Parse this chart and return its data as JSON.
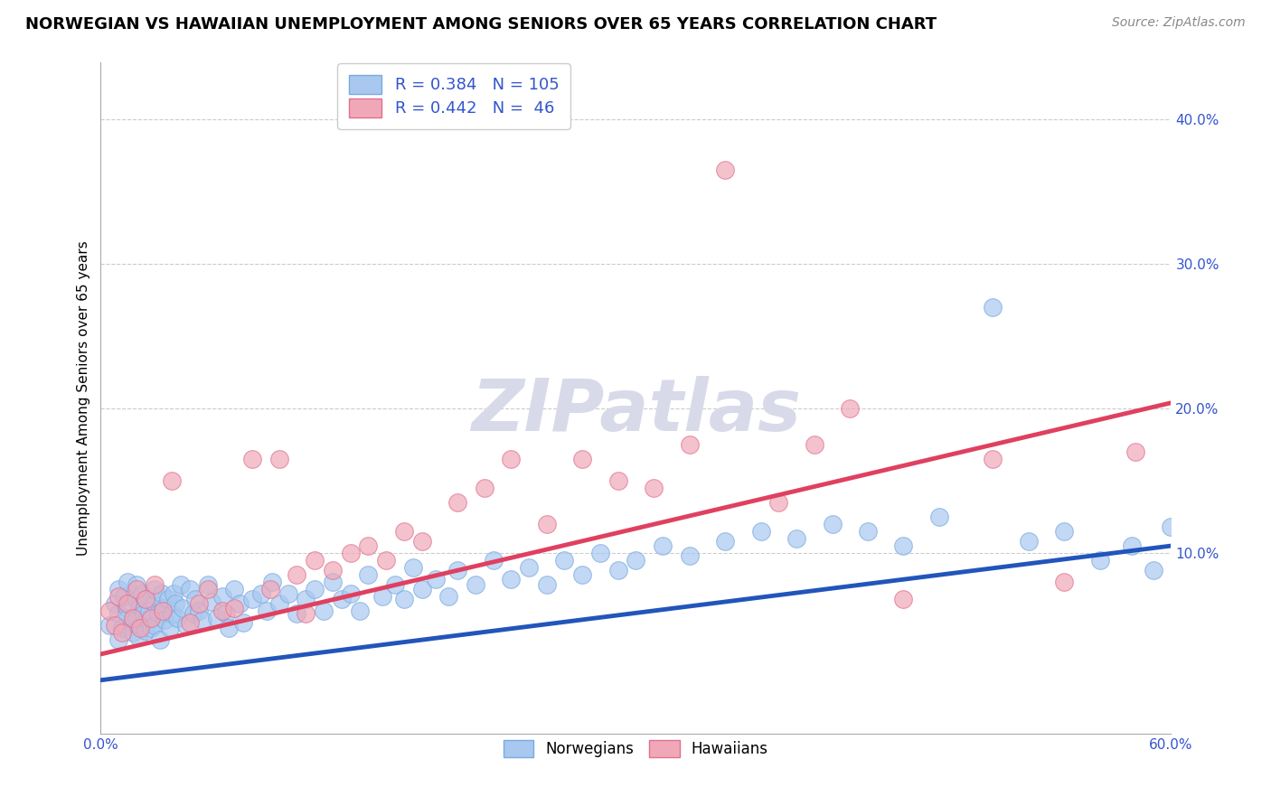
{
  "title": "NORWEGIAN VS HAWAIIAN UNEMPLOYMENT AMONG SENIORS OVER 65 YEARS CORRELATION CHART",
  "source": "Source: ZipAtlas.com",
  "ylabel": "Unemployment Among Seniors over 65 years",
  "xlim": [
    0.0,
    0.6
  ],
  "ylim": [
    -0.025,
    0.44
  ],
  "xticks": [
    0.0,
    0.6
  ],
  "xticklabels": [
    "0.0%",
    "60.0%"
  ],
  "ytick_positions": [
    0.1,
    0.2,
    0.3,
    0.4
  ],
  "ytick_labels": [
    "10.0%",
    "20.0%",
    "30.0%",
    "40.0%"
  ],
  "norwegians_R": 0.384,
  "norwegians_N": 105,
  "hawaiians_R": 0.442,
  "hawaiians_N": 46,
  "norwegian_color": "#a8c8f0",
  "hawaiian_color": "#f0a8b8",
  "norwegian_edge_color": "#7aaadd",
  "hawaiian_edge_color": "#e07090",
  "norwegian_line_color": "#2255bb",
  "hawaiian_line_color": "#e04060",
  "legend_text_color": "#3355cc",
  "watermark_text": "ZIPatlas",
  "watermark_color": "#d8daea",
  "background_color": "#ffffff",
  "grid_color": "#cccccc",
  "grid_style": "--",
  "title_fontsize": 13,
  "axis_label_fontsize": 11,
  "tick_fontsize": 11,
  "nor_intercept": 0.012,
  "nor_slope": 0.155,
  "haw_intercept": 0.03,
  "haw_slope": 0.29,
  "norwegians_x": [
    0.005,
    0.008,
    0.01,
    0.01,
    0.01,
    0.012,
    0.013,
    0.015,
    0.015,
    0.015,
    0.018,
    0.018,
    0.02,
    0.02,
    0.02,
    0.021,
    0.022,
    0.022,
    0.023,
    0.024,
    0.025,
    0.025,
    0.026,
    0.027,
    0.028,
    0.03,
    0.03,
    0.03,
    0.032,
    0.033,
    0.034,
    0.035,
    0.036,
    0.038,
    0.039,
    0.04,
    0.041,
    0.042,
    0.043,
    0.045,
    0.046,
    0.048,
    0.05,
    0.052,
    0.053,
    0.055,
    0.057,
    0.06,
    0.062,
    0.065,
    0.068,
    0.07,
    0.072,
    0.075,
    0.078,
    0.08,
    0.085,
    0.09,
    0.093,
    0.096,
    0.1,
    0.105,
    0.11,
    0.115,
    0.12,
    0.125,
    0.13,
    0.135,
    0.14,
    0.145,
    0.15,
    0.158,
    0.165,
    0.17,
    0.175,
    0.18,
    0.188,
    0.195,
    0.2,
    0.21,
    0.22,
    0.23,
    0.24,
    0.25,
    0.26,
    0.27,
    0.28,
    0.29,
    0.3,
    0.315,
    0.33,
    0.35,
    0.37,
    0.39,
    0.41,
    0.43,
    0.45,
    0.47,
    0.5,
    0.52,
    0.54,
    0.56,
    0.578,
    0.59,
    0.6
  ],
  "norwegians_y": [
    0.05,
    0.065,
    0.04,
    0.075,
    0.058,
    0.048,
    0.07,
    0.062,
    0.055,
    0.08,
    0.052,
    0.045,
    0.068,
    0.055,
    0.078,
    0.042,
    0.063,
    0.05,
    0.072,
    0.058,
    0.046,
    0.068,
    0.054,
    0.06,
    0.048,
    0.065,
    0.075,
    0.05,
    0.058,
    0.04,
    0.072,
    0.062,
    0.054,
    0.068,
    0.048,
    0.058,
    0.072,
    0.065,
    0.055,
    0.078,
    0.062,
    0.05,
    0.075,
    0.058,
    0.068,
    0.06,
    0.054,
    0.078,
    0.066,
    0.055,
    0.07,
    0.058,
    0.048,
    0.075,
    0.065,
    0.052,
    0.068,
    0.072,
    0.06,
    0.08,
    0.065,
    0.072,
    0.058,
    0.068,
    0.075,
    0.06,
    0.08,
    0.068,
    0.072,
    0.06,
    0.085,
    0.07,
    0.078,
    0.068,
    0.09,
    0.075,
    0.082,
    0.07,
    0.088,
    0.078,
    0.095,
    0.082,
    0.09,
    0.078,
    0.095,
    0.085,
    0.1,
    0.088,
    0.095,
    0.105,
    0.098,
    0.108,
    0.115,
    0.11,
    0.12,
    0.115,
    0.105,
    0.125,
    0.27,
    0.108,
    0.115,
    0.095,
    0.105,
    0.088,
    0.118
  ],
  "hawaiians_x": [
    0.005,
    0.008,
    0.01,
    0.012,
    0.015,
    0.018,
    0.02,
    0.022,
    0.025,
    0.028,
    0.03,
    0.035,
    0.04,
    0.05,
    0.055,
    0.06,
    0.068,
    0.075,
    0.085,
    0.095,
    0.1,
    0.11,
    0.115,
    0.12,
    0.13,
    0.14,
    0.15,
    0.16,
    0.17,
    0.18,
    0.2,
    0.215,
    0.23,
    0.25,
    0.27,
    0.29,
    0.31,
    0.33,
    0.35,
    0.38,
    0.4,
    0.42,
    0.45,
    0.5,
    0.54,
    0.58
  ],
  "hawaiians_y": [
    0.06,
    0.05,
    0.07,
    0.045,
    0.065,
    0.055,
    0.075,
    0.048,
    0.068,
    0.055,
    0.078,
    0.06,
    0.15,
    0.052,
    0.065,
    0.075,
    0.06,
    0.062,
    0.165,
    0.075,
    0.165,
    0.085,
    0.058,
    0.095,
    0.088,
    0.1,
    0.105,
    0.095,
    0.115,
    0.108,
    0.135,
    0.145,
    0.165,
    0.12,
    0.165,
    0.15,
    0.145,
    0.175,
    0.365,
    0.135,
    0.175,
    0.2,
    0.068,
    0.165,
    0.08,
    0.17
  ]
}
